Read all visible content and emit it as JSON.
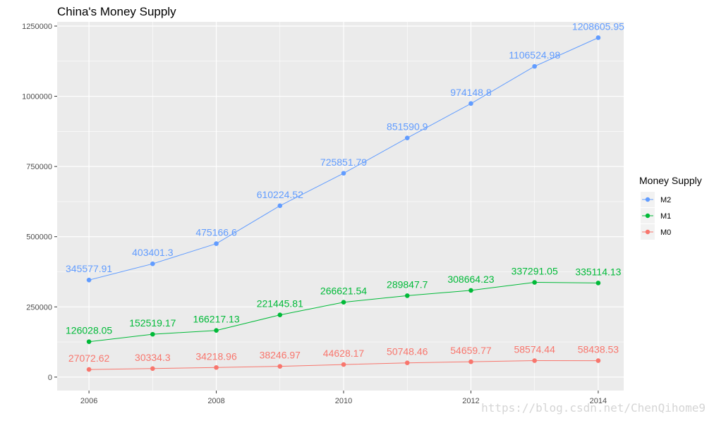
{
  "chart_data": {
    "type": "line",
    "title": "China's Money Supply",
    "xlabel": "",
    "ylabel": "",
    "x": [
      2006,
      2007,
      2008,
      2009,
      2010,
      2011,
      2012,
      2013,
      2014
    ],
    "xlim": [
      2005.5,
      2014.4
    ],
    "ylim": [
      -48000,
      1265000
    ],
    "x_ticks": [
      "2006",
      "2008",
      "2010",
      "2012",
      "2014"
    ],
    "y_ticks": [
      "0",
      "250000",
      "500000",
      "750000",
      "1000000",
      "1250000"
    ],
    "grid": true,
    "legend_title": "Money Supply",
    "legend_position": "right",
    "series": [
      {
        "name": "M2",
        "color": "#619CFF",
        "values": [
          345577.91,
          403401.3,
          475166.6,
          610224.52,
          725851.79,
          851590.9,
          974148.8,
          1106524.98,
          1208605.95
        ],
        "labels": [
          "345577.91",
          "403401.3",
          "475166.6",
          "610224.52",
          "725851.79",
          "851590.9",
          "974148.8",
          "1106524.98",
          "1208605.95"
        ]
      },
      {
        "name": "M1",
        "color": "#00BA38",
        "values": [
          126028.05,
          152519.17,
          166217.13,
          221445.81,
          266621.54,
          289847.7,
          308664.23,
          337291.05,
          335114.13
        ],
        "labels": [
          "126028.05",
          "152519.17",
          "166217.13",
          "221445.81",
          "266621.54",
          "289847.7",
          "308664.23",
          "337291.05",
          "335114.13"
        ]
      },
      {
        "name": "M0",
        "color": "#F8766D",
        "values": [
          27072.62,
          30334.3,
          34218.96,
          38246.97,
          44628.17,
          50748.46,
          54659.77,
          58574.44,
          58438.53
        ],
        "labels": [
          "27072.62",
          "30334.3",
          "34218.96",
          "38246.97",
          "44628.17",
          "50748.46",
          "54659.77",
          "58574.44",
          "58438.53"
        ]
      }
    ]
  },
  "watermark": "https://blog.csdn.net/ChenQihome9"
}
